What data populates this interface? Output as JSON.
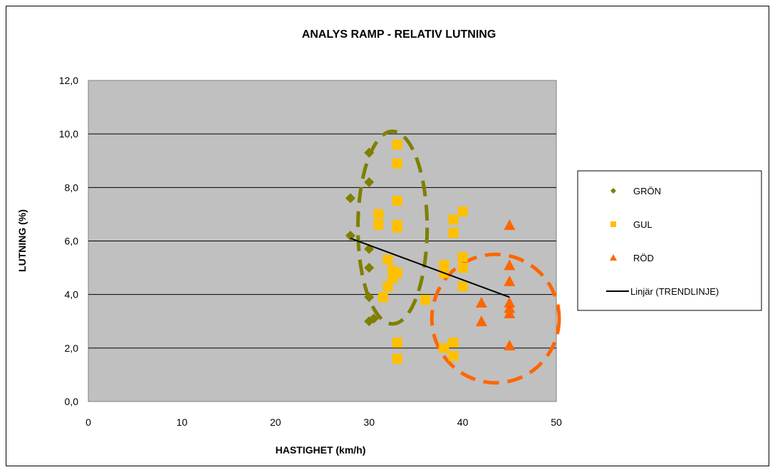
{
  "chart_data": {
    "type": "scatter",
    "title": "ANALYS RAMP - RELATIV LUTNING",
    "xlabel": "HASTIGHET (km/h)",
    "ylabel": "LUTNING (%)",
    "xlim": [
      0,
      50
    ],
    "ylim": [
      0,
      12
    ],
    "x_ticks": [
      "0",
      "10",
      "20",
      "30",
      "40",
      "50"
    ],
    "y_ticks": [
      "0,0",
      "2,0",
      "4,0",
      "6,0",
      "8,0",
      "10,0",
      "12,0"
    ],
    "grid": "horizontal",
    "legend_position": "right",
    "plot_background": "#c0c0c0",
    "series": [
      {
        "name": "GRÖN",
        "marker": "diamond",
        "color": "#7f7f00",
        "points": [
          [
            28,
            7.6
          ],
          [
            28,
            6.2
          ],
          [
            30,
            9.3
          ],
          [
            30,
            8.2
          ],
          [
            30,
            5.7
          ],
          [
            30,
            5.0
          ],
          [
            30,
            3.9
          ],
          [
            30,
            3.0
          ],
          [
            30.5,
            3.1
          ]
        ]
      },
      {
        "name": "GUL",
        "marker": "square",
        "color": "#ffc000",
        "points": [
          [
            31,
            7.0
          ],
          [
            31,
            6.6
          ],
          [
            31.5,
            3.9
          ],
          [
            32,
            5.3
          ],
          [
            32,
            4.3
          ],
          [
            32.5,
            4.9
          ],
          [
            32.5,
            4.6
          ],
          [
            33,
            4.8
          ],
          [
            33,
            9.6
          ],
          [
            33,
            8.9
          ],
          [
            33,
            7.5
          ],
          [
            33,
            6.6
          ],
          [
            33,
            6.5
          ],
          [
            33,
            2.2
          ],
          [
            33,
            1.6
          ],
          [
            36,
            3.8
          ],
          [
            38,
            5.1
          ],
          [
            38,
            4.8
          ],
          [
            38,
            2.0
          ],
          [
            39,
            6.8
          ],
          [
            39,
            6.3
          ],
          [
            39,
            2.2
          ],
          [
            39,
            1.7
          ],
          [
            40,
            7.1
          ],
          [
            40,
            5.4
          ],
          [
            40,
            5.0
          ],
          [
            40,
            4.3
          ]
        ]
      },
      {
        "name": "RÖD",
        "marker": "triangle",
        "color": "#ff6600",
        "points": [
          [
            42,
            3.7
          ],
          [
            42,
            3.0
          ],
          [
            45,
            6.6
          ],
          [
            45,
            5.1
          ],
          [
            45,
            4.5
          ],
          [
            45,
            3.7
          ],
          [
            45,
            3.5
          ],
          [
            45,
            3.3
          ],
          [
            45,
            2.1
          ]
        ]
      }
    ],
    "trendline": {
      "name": "Linjär (TRENDLINJE)",
      "color": "#000000",
      "x": [
        28,
        45
      ],
      "y": [
        6.1,
        3.9
      ]
    },
    "ellipses": [
      {
        "color": "#7f7f00",
        "cx": 32.5,
        "cy": 6.5,
        "rx": 3.7,
        "ry": 3.6
      },
      {
        "color": "#ff6600",
        "cx": 43.5,
        "cy": 3.1,
        "rx": 6.8,
        "ry": 2.4
      }
    ]
  }
}
